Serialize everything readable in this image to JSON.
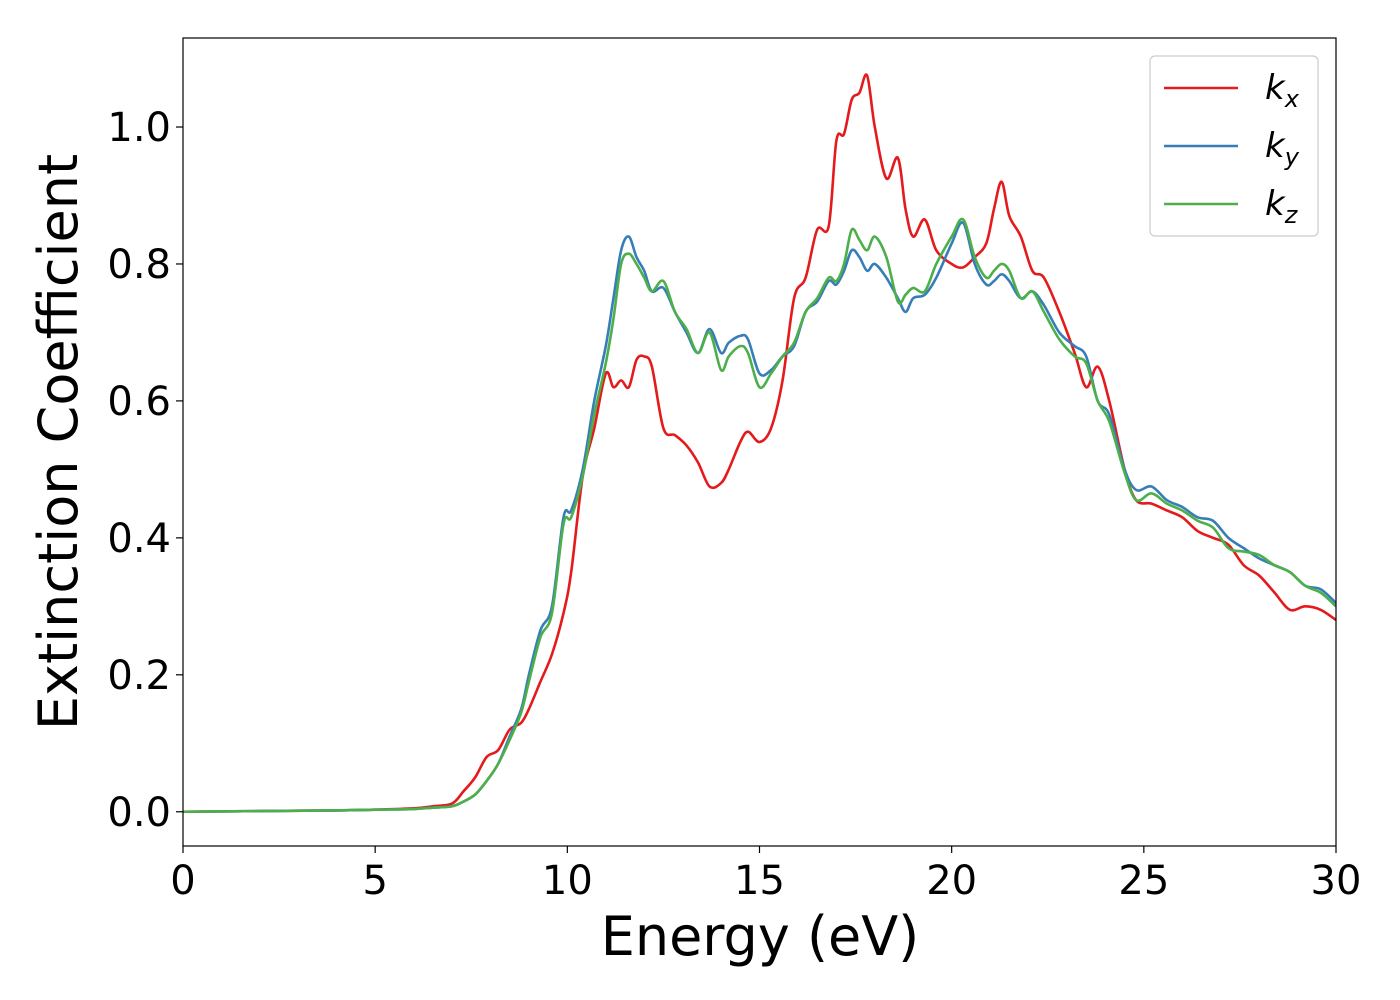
{
  "chart_data": {
    "type": "line",
    "xlabel": "Energy (eV)",
    "ylabel": "Extinction Coefficient",
    "xlim": [
      0,
      30
    ],
    "ylim": [
      -0.05,
      1.13
    ],
    "xticks": [
      0,
      5,
      10,
      15,
      20,
      25,
      30
    ],
    "xtick_labels": [
      "0",
      "5",
      "10",
      "15",
      "20",
      "25",
      "30"
    ],
    "yticks": [
      0.0,
      0.2,
      0.4,
      0.6,
      0.8,
      1.0
    ],
    "ytick_labels": [
      "0.0",
      "0.2",
      "0.4",
      "0.6",
      "0.8",
      "1.0"
    ],
    "grid": false,
    "legend_position": "top-right",
    "series": [
      {
        "name": "k",
        "subscript": "x",
        "color": "#e41a1c",
        "x": [
          0,
          2,
          4,
          5,
          6,
          6.5,
          7.0,
          7.3,
          7.6,
          7.9,
          8.2,
          8.5,
          8.8,
          9.0,
          9.3,
          9.6,
          9.9,
          10.1,
          10.4,
          10.7,
          11.0,
          11.2,
          11.4,
          11.6,
          11.8,
          12.0,
          12.2,
          12.5,
          12.8,
          13.1,
          13.4,
          13.7,
          14.0,
          14.2,
          14.5,
          14.7,
          15.0,
          15.3,
          15.6,
          15.9,
          16.2,
          16.5,
          16.8,
          17.0,
          17.2,
          17.4,
          17.6,
          17.8,
          18.0,
          18.3,
          18.6,
          18.8,
          19.0,
          19.3,
          19.6,
          20.0,
          20.3,
          20.6,
          20.9,
          21.1,
          21.3,
          21.5,
          21.8,
          22.1,
          22.4,
          22.8,
          23.2,
          23.5,
          23.8,
          24.1,
          24.5,
          24.8,
          25.2,
          25.6,
          26.0,
          26.4,
          26.8,
          27.2,
          27.6,
          28.0,
          28.4,
          28.8,
          29.2,
          29.6,
          30.0
        ],
        "y": [
          0.0,
          0.001,
          0.002,
          0.003,
          0.005,
          0.008,
          0.012,
          0.03,
          0.05,
          0.08,
          0.09,
          0.12,
          0.13,
          0.15,
          0.19,
          0.23,
          0.29,
          0.35,
          0.49,
          0.56,
          0.64,
          0.62,
          0.63,
          0.62,
          0.66,
          0.665,
          0.65,
          0.56,
          0.55,
          0.535,
          0.51,
          0.475,
          0.48,
          0.5,
          0.54,
          0.555,
          0.54,
          0.56,
          0.63,
          0.75,
          0.78,
          0.85,
          0.855,
          0.98,
          0.99,
          1.04,
          1.05,
          1.075,
          1.0,
          0.925,
          0.955,
          0.88,
          0.84,
          0.865,
          0.82,
          0.8,
          0.795,
          0.81,
          0.83,
          0.88,
          0.92,
          0.87,
          0.84,
          0.79,
          0.78,
          0.73,
          0.67,
          0.62,
          0.65,
          0.6,
          0.5,
          0.455,
          0.45,
          0.44,
          0.43,
          0.41,
          0.4,
          0.39,
          0.36,
          0.345,
          0.32,
          0.295,
          0.3,
          0.295,
          0.28
        ]
      },
      {
        "name": "k",
        "subscript": "y",
        "color": "#377eb8",
        "x": [
          0,
          2,
          4,
          5,
          6,
          6.5,
          7.0,
          7.3,
          7.6,
          7.9,
          8.2,
          8.5,
          8.8,
          9.0,
          9.3,
          9.6,
          9.9,
          10.1,
          10.4,
          10.7,
          11.0,
          11.2,
          11.4,
          11.6,
          11.8,
          12.0,
          12.2,
          12.5,
          12.8,
          13.1,
          13.4,
          13.7,
          14.0,
          14.2,
          14.5,
          14.7,
          15.0,
          15.3,
          15.6,
          15.9,
          16.2,
          16.5,
          16.8,
          17.0,
          17.2,
          17.4,
          17.6,
          17.8,
          18.0,
          18.3,
          18.6,
          18.8,
          19.0,
          19.3,
          19.6,
          20.0,
          20.3,
          20.6,
          20.9,
          21.1,
          21.3,
          21.5,
          21.8,
          22.1,
          22.4,
          22.8,
          23.2,
          23.5,
          23.8,
          24.1,
          24.5,
          24.8,
          25.2,
          25.6,
          26.0,
          26.4,
          26.8,
          27.2,
          27.6,
          28.0,
          28.4,
          28.8,
          29.2,
          29.6,
          30.0
        ],
        "y": [
          0.0,
          0.001,
          0.002,
          0.003,
          0.004,
          0.006,
          0.008,
          0.015,
          0.025,
          0.045,
          0.07,
          0.11,
          0.15,
          0.2,
          0.265,
          0.3,
          0.43,
          0.44,
          0.5,
          0.6,
          0.68,
          0.75,
          0.82,
          0.84,
          0.81,
          0.79,
          0.76,
          0.765,
          0.73,
          0.7,
          0.67,
          0.705,
          0.67,
          0.685,
          0.695,
          0.69,
          0.64,
          0.645,
          0.665,
          0.68,
          0.73,
          0.745,
          0.775,
          0.77,
          0.79,
          0.82,
          0.81,
          0.79,
          0.8,
          0.78,
          0.75,
          0.73,
          0.75,
          0.755,
          0.78,
          0.83,
          0.86,
          0.8,
          0.77,
          0.775,
          0.785,
          0.775,
          0.75,
          0.76,
          0.74,
          0.7,
          0.68,
          0.665,
          0.6,
          0.58,
          0.5,
          0.47,
          0.475,
          0.455,
          0.445,
          0.43,
          0.425,
          0.4,
          0.385,
          0.37,
          0.36,
          0.35,
          0.33,
          0.325,
          0.305
        ]
      },
      {
        "name": "k",
        "subscript": "z",
        "color": "#4daf4a",
        "x": [
          0,
          2,
          4,
          5,
          6,
          6.5,
          7.0,
          7.3,
          7.6,
          7.9,
          8.2,
          8.5,
          8.8,
          9.0,
          9.3,
          9.6,
          9.9,
          10.1,
          10.4,
          10.7,
          11.0,
          11.2,
          11.4,
          11.6,
          11.8,
          12.0,
          12.2,
          12.5,
          12.8,
          13.1,
          13.4,
          13.7,
          14.0,
          14.2,
          14.5,
          14.7,
          15.0,
          15.3,
          15.6,
          15.9,
          16.2,
          16.5,
          16.8,
          17.0,
          17.2,
          17.4,
          17.6,
          17.8,
          18.0,
          18.3,
          18.6,
          18.8,
          19.0,
          19.3,
          19.6,
          20.0,
          20.3,
          20.6,
          20.9,
          21.1,
          21.3,
          21.5,
          21.8,
          22.1,
          22.4,
          22.8,
          23.2,
          23.5,
          23.8,
          24.1,
          24.5,
          24.8,
          25.2,
          25.6,
          26.0,
          26.4,
          26.8,
          27.2,
          27.6,
          28.0,
          28.4,
          28.8,
          29.2,
          29.6,
          30.0
        ],
        "y": [
          0.0,
          0.001,
          0.002,
          0.003,
          0.004,
          0.006,
          0.008,
          0.015,
          0.025,
          0.045,
          0.07,
          0.105,
          0.145,
          0.19,
          0.255,
          0.29,
          0.42,
          0.43,
          0.49,
          0.58,
          0.655,
          0.72,
          0.8,
          0.815,
          0.8,
          0.78,
          0.76,
          0.775,
          0.73,
          0.705,
          0.67,
          0.7,
          0.645,
          0.665,
          0.68,
          0.67,
          0.62,
          0.64,
          0.665,
          0.685,
          0.73,
          0.75,
          0.78,
          0.775,
          0.8,
          0.85,
          0.835,
          0.82,
          0.84,
          0.81,
          0.745,
          0.755,
          0.765,
          0.76,
          0.8,
          0.84,
          0.865,
          0.81,
          0.78,
          0.79,
          0.8,
          0.79,
          0.75,
          0.76,
          0.73,
          0.69,
          0.665,
          0.655,
          0.6,
          0.57,
          0.495,
          0.455,
          0.465,
          0.45,
          0.44,
          0.425,
          0.415,
          0.385,
          0.38,
          0.375,
          0.36,
          0.35,
          0.33,
          0.32,
          0.3
        ]
      }
    ]
  }
}
